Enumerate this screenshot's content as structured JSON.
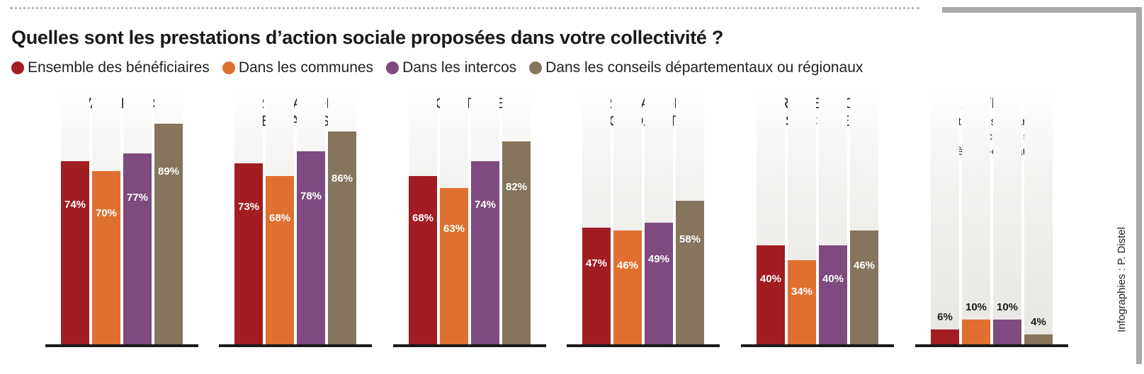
{
  "title": "Quelles sont les prestations d’action sociale proposées dans votre collectivité ?",
  "credit": "Infographies : P. Distel",
  "colors": {
    "series": [
      "#a11d22",
      "#e07030",
      "#7f4a80",
      "#84755c"
    ],
    "baseline": "#1a1a1a"
  },
  "legend": [
    {
      "label": "Ensemble des bénéficiaires",
      "color": "#a11d22"
    },
    {
      "label": "Dans les communes",
      "color": "#e07030"
    },
    {
      "label": "Dans les intercos",
      "color": "#7f4a80"
    },
    {
      "label": "Dans les conseils départementaux ou régionaux",
      "color": "#84755c"
    }
  ],
  "chart_data": {
    "type": "bar",
    "unit": "%",
    "ylim": [
      0,
      100
    ],
    "series_names": [
      "Ensemble des bénéficiaires",
      "Dans les communes",
      "Dans les intercos",
      "Dans les conseils départementaux ou régionaux"
    ],
    "panels": [
      {
        "title": [
          "VACANCES"
        ],
        "subtitle": [],
        "values": [
          74,
          70,
          77,
          89
        ],
        "labels": [
          "74%",
          "70%",
          "77%",
          "89%"
        ]
      },
      {
        "title": [
          "PRESTATIONS",
          "«ENFANTS»"
        ],
        "subtitle": [],
        "values": [
          73,
          68,
          78,
          86
        ],
        "labels": [
          "73%",
          "68%",
          "78%",
          "86%"
        ]
      },
      {
        "title": [
          "CULTURE"
        ],
        "subtitle": [],
        "values": [
          68,
          63,
          74,
          82
        ],
        "labels": [
          "68%",
          "63%",
          "74%",
          "82%"
        ]
      },
      {
        "title": [
          "PRESTATIONS",
          "«SOLIDARITÉ»"
        ],
        "subtitle": [],
        "values": [
          47,
          46,
          49,
          58
        ],
        "labels": [
          "47%",
          "46%",
          "49%",
          "58%"
        ]
      },
      {
        "title": [
          "PROTECTION",
          "SOCIALE"
        ],
        "subtitle": [],
        "values": [
          40,
          34,
          40,
          46
        ],
        "labels": [
          "40%",
          "34%",
          "40%",
          "46%"
        ]
      },
      {
        "title": [
          "AUTRES"
        ],
        "subtitle": [
          "(titres-restaurant,",
          "aides financières, sport,",
          "chèques-cadeaux)"
        ],
        "values": [
          6,
          10,
          10,
          4
        ],
        "labels": [
          "6%",
          "10%",
          "10%",
          "4%"
        ]
      }
    ]
  }
}
